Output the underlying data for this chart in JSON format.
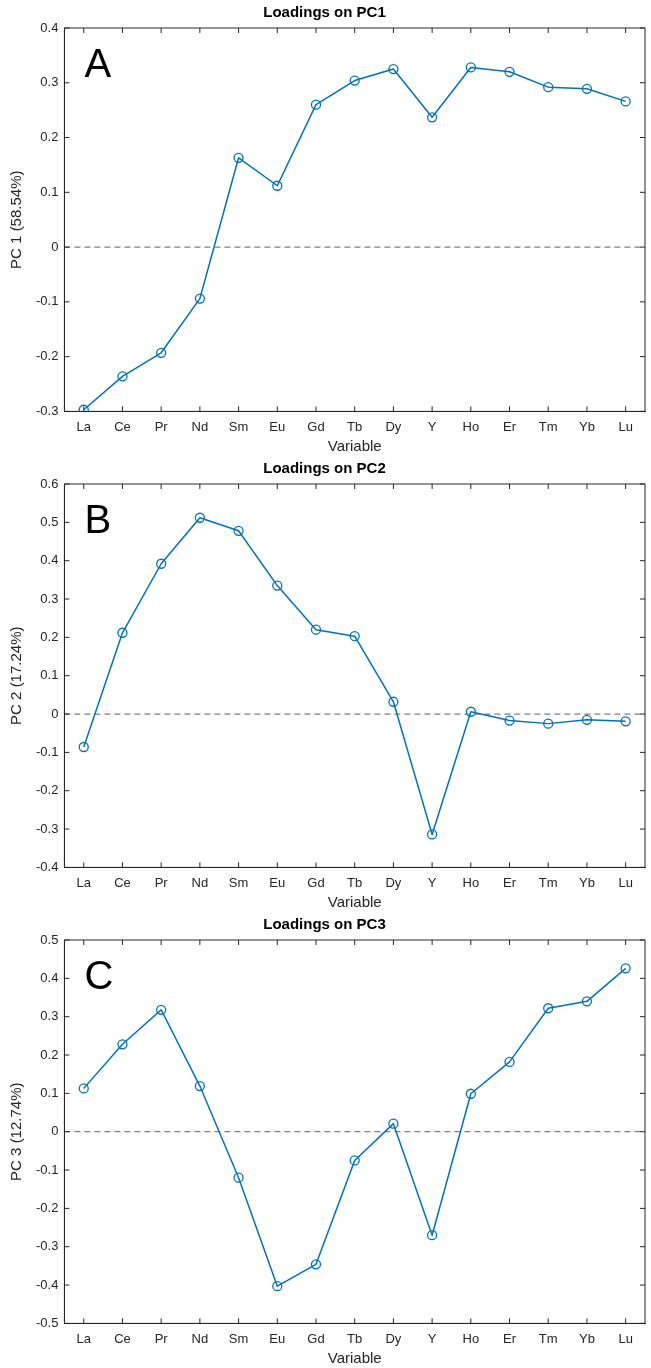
{
  "chart_data": [
    {
      "type": "line",
      "title": "Loadings on PC1",
      "xlabel": "Variable",
      "ylabel": "PC 1 (58.54%)",
      "annotations": [
        "A"
      ],
      "categories": [
        "La",
        "Ce",
        "Pr",
        "Nd",
        "Sm",
        "Eu",
        "Gd",
        "Tb",
        "Dy",
        "Y",
        "Ho",
        "Er",
        "Tm",
        "Yb",
        "Lu"
      ],
      "series": [
        {
          "color": "#0072bd",
          "values": [
            -0.297,
            -0.236,
            -0.193,
            -0.094,
            0.163,
            0.112,
            0.26,
            0.304,
            0.325,
            0.237,
            0.328,
            0.32,
            0.292,
            0.289,
            0.266
          ]
        }
      ],
      "ylim": [
        -0.3,
        0.4
      ],
      "yticks": [
        -0.3,
        -0.2,
        -0.1,
        0,
        0.1,
        0.2,
        0.3,
        0.4
      ],
      "ref_lines": [
        {
          "axis": "y",
          "value": 0,
          "color": "#808080",
          "line_style": "dashed"
        }
      ],
      "grid": false,
      "legend": false,
      "marker": "circle",
      "line_style": "solid"
    },
    {
      "type": "line",
      "title": "Loadings on PC2",
      "xlabel": "Variable",
      "ylabel": "PC 2 (17.24%)",
      "annotations": [
        "B"
      ],
      "categories": [
        "La",
        "Ce",
        "Pr",
        "Nd",
        "Sm",
        "Eu",
        "Gd",
        "Tb",
        "Dy",
        "Y",
        "Ho",
        "Er",
        "Tm",
        "Yb",
        "Lu"
      ],
      "series": [
        {
          "color": "#0072bd",
          "values": [
            -0.086,
            0.212,
            0.392,
            0.512,
            0.478,
            0.335,
            0.22,
            0.203,
            0.032,
            -0.314,
            0.006,
            -0.017,
            -0.025,
            -0.015,
            -0.019
          ]
        }
      ],
      "ylim": [
        -0.4,
        0.6
      ],
      "yticks": [
        -0.4,
        -0.3,
        -0.2,
        -0.1,
        0,
        0.1,
        0.2,
        0.3,
        0.4,
        0.5,
        0.6
      ],
      "ref_lines": [
        {
          "axis": "y",
          "value": 0,
          "color": "#808080",
          "line_style": "dashed"
        }
      ],
      "grid": false,
      "legend": false,
      "marker": "circle",
      "line_style": "solid"
    },
    {
      "type": "line",
      "title": "Loadings on PC3",
      "xlabel": "Variable",
      "ylabel": "PC 3 (12.74%)",
      "annotations": [
        "C"
      ],
      "categories": [
        "La",
        "Ce",
        "Pr",
        "Nd",
        "Sm",
        "Eu",
        "Gd",
        "Tb",
        "Dy",
        "Y",
        "Ho",
        "Er",
        "Tm",
        "Yb",
        "Lu"
      ],
      "series": [
        {
          "color": "#0072bd",
          "values": [
            0.113,
            0.228,
            0.318,
            0.119,
            -0.12,
            -0.403,
            -0.346,
            -0.075,
            0.021,
            -0.27,
            0.099,
            0.182,
            0.322,
            0.34,
            0.426
          ]
        }
      ],
      "ylim": [
        -0.5,
        0.5
      ],
      "yticks": [
        -0.5,
        -0.4,
        -0.3,
        -0.2,
        -0.1,
        0,
        0.1,
        0.2,
        0.3,
        0.4,
        0.5
      ],
      "ref_lines": [
        {
          "axis": "y",
          "value": 0,
          "color": "#808080",
          "line_style": "dashed"
        }
      ],
      "grid": false,
      "legend": false,
      "marker": "circle",
      "line_style": "solid"
    }
  ]
}
